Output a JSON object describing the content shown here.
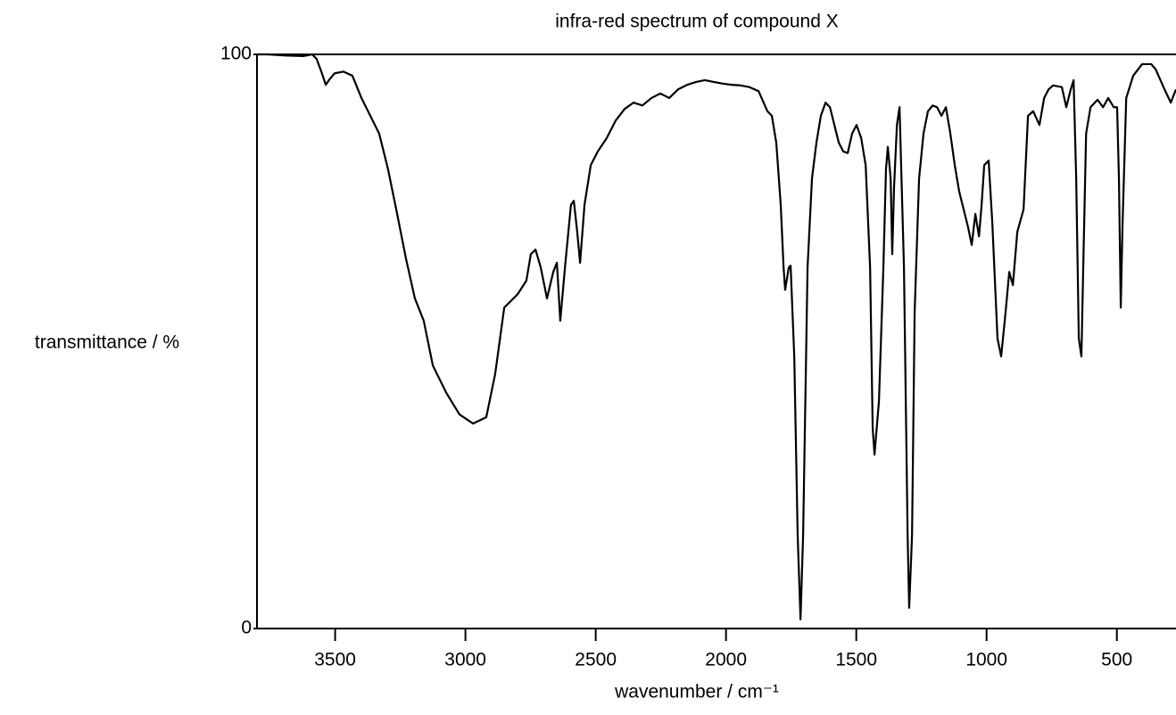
{
  "chart_data": {
    "type": "line",
    "title": "infra-red spectrum of compound X",
    "xlabel": "wavenumber / cm⁻¹",
    "ylabel": "transmittance / %",
    "xlim": [
      3800,
      273
    ],
    "ylim": [
      0,
      100
    ],
    "xticks": [
      3500,
      3000,
      2500,
      2000,
      1500,
      1000,
      500
    ],
    "yticks": [
      0,
      100
    ],
    "color": "#000000",
    "x": [
      3800,
      3759,
      3690,
      3622,
      3588,
      3571,
      3553,
      3536,
      3519,
      3502,
      3468,
      3434,
      3399,
      3365,
      3331,
      3297,
      3262,
      3228,
      3194,
      3160,
      3125,
      3074,
      3023,
      2971,
      2920,
      2886,
      2851,
      2800,
      2766,
      2749,
      2731,
      2711,
      2687,
      2663,
      2649,
      2636,
      2618,
      2595,
      2584,
      2571,
      2560,
      2543,
      2519,
      2492,
      2458,
      2423,
      2389,
      2355,
      2321,
      2286,
      2252,
      2218,
      2184,
      2149,
      2115,
      2081,
      2047,
      2012,
      1978,
      1944,
      1910,
      1875,
      1841,
      1824,
      1807,
      1790,
      1779,
      1773,
      1759,
      1752,
      1738,
      1725,
      1714,
      1704,
      1687,
      1670,
      1653,
      1636,
      1618,
      1601,
      1584,
      1567,
      1550,
      1533,
      1516,
      1499,
      1481,
      1464,
      1447,
      1437,
      1430,
      1413,
      1396,
      1386,
      1379,
      1368,
      1362,
      1355,
      1344,
      1334,
      1317,
      1303,
      1297,
      1286,
      1276,
      1259,
      1242,
      1225,
      1207,
      1190,
      1173,
      1156,
      1139,
      1122,
      1105,
      1088,
      1071,
      1057,
      1043,
      1029,
      1019,
      1009,
      992,
      978,
      958,
      944,
      927,
      913,
      899,
      882,
      858,
      841,
      821,
      797,
      779,
      762,
      745,
      711,
      694,
      677,
      666,
      656,
      646,
      636,
      629,
      618,
      601,
      574,
      553,
      533,
      512,
      499,
      492,
      485,
      478,
      464,
      437,
      403,
      368,
      351,
      317,
      293,
      273
    ],
    "values": [
      100,
      100,
      99.8,
      99.7,
      100,
      99.2,
      97,
      94.7,
      95.8,
      96.7,
      97,
      96.3,
      92.4,
      89.3,
      86.2,
      80,
      72.2,
      64.4,
      57.5,
      53.6,
      45.8,
      41.1,
      37.3,
      35.7,
      36.8,
      44.3,
      55.9,
      58.2,
      60.6,
      65.2,
      66,
      62.9,
      57.5,
      62.1,
      63.7,
      53.6,
      62.9,
      73.8,
      74.5,
      69.1,
      63.7,
      73.8,
      80.7,
      83.1,
      85.4,
      88.5,
      90.5,
      91.6,
      91.1,
      92.4,
      93.2,
      92.4,
      93.9,
      94.7,
      95.2,
      95.5,
      95.2,
      94.9,
      94.7,
      94.6,
      94.3,
      93.6,
      90.1,
      89.3,
      84.6,
      73.8,
      62.9,
      59,
      62.9,
      63.2,
      47.4,
      16.3,
      1.6,
      16.3,
      62.9,
      78.4,
      84.6,
      89.3,
      91.6,
      90.8,
      87.7,
      84.6,
      83.1,
      82.8,
      86.2,
      87.7,
      85.4,
      80.7,
      62.9,
      34.9,
      30.3,
      39.6,
      62.9,
      80,
      83.9,
      78.4,
      65.2,
      76.9,
      87.7,
      90.8,
      62.9,
      16.3,
      3.6,
      16.3,
      55.1,
      78.4,
      86.2,
      90.1,
      91.1,
      90.8,
      89.3,
      90.8,
      86.2,
      80.7,
      76.1,
      73,
      69.9,
      66.8,
      72.2,
      68.3,
      73.8,
      80.7,
      81.5,
      70.7,
      50.5,
      47.4,
      55.1,
      62.1,
      59.8,
      69.1,
      73,
      89.3,
      90.1,
      87.7,
      92.4,
      93.9,
      94.6,
      94.3,
      90.8,
      93.9,
      95.5,
      78.4,
      50.5,
      47.4,
      62.9,
      86.2,
      90.8,
      92.1,
      90.8,
      92.4,
      90.8,
      90.8,
      78.4,
      55.9,
      70.7,
      92.4,
      96.3,
      98.3,
      98.3,
      97.4,
      93.9,
      91.6,
      93.9
    ]
  }
}
